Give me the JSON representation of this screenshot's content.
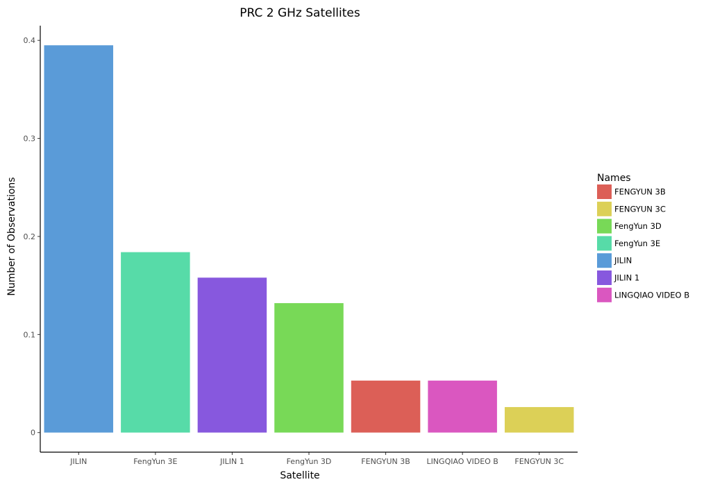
{
  "chart_data": {
    "type": "bar",
    "title": "PRC 2 GHz Satellites",
    "xlabel": "Satellite",
    "ylabel": "Number of Observations",
    "categories": [
      "JILIN",
      "FengYun 3E",
      "JILIN 1",
      "FengYun 3D",
      "FENGYUN 3B",
      "LINGQIAO VIDEO B",
      "FENGYUN 3C"
    ],
    "values": [
      0.395,
      0.184,
      0.158,
      0.132,
      0.053,
      0.053,
      0.026
    ],
    "bar_colors": [
      "#5a9bd8",
      "#57dba8",
      "#8758de",
      "#78d957",
      "#dc5f57",
      "#da57c0",
      "#dcd057"
    ],
    "ylim": [
      -0.02,
      0.415
    ],
    "yticks": [
      0,
      0.1,
      0.2,
      0.3,
      0.4
    ],
    "ytick_labels": [
      "0",
      "0.1",
      "0.2",
      "0.3",
      "0.4"
    ],
    "grid": false,
    "legend": {
      "title": "Names",
      "placement": "right",
      "items": [
        {
          "label": "FENGYUN 3B",
          "color": "#dc5f57"
        },
        {
          "label": "FENGYUN 3C",
          "color": "#dcd057"
        },
        {
          "label": "FengYun 3D",
          "color": "#78d957"
        },
        {
          "label": "FengYun 3E",
          "color": "#57dba8"
        },
        {
          "label": "JILIN",
          "color": "#5a9bd8"
        },
        {
          "label": "JILIN 1",
          "color": "#8758de"
        },
        {
          "label": "LINGQIAO VIDEO B",
          "color": "#da57c0"
        }
      ]
    }
  }
}
